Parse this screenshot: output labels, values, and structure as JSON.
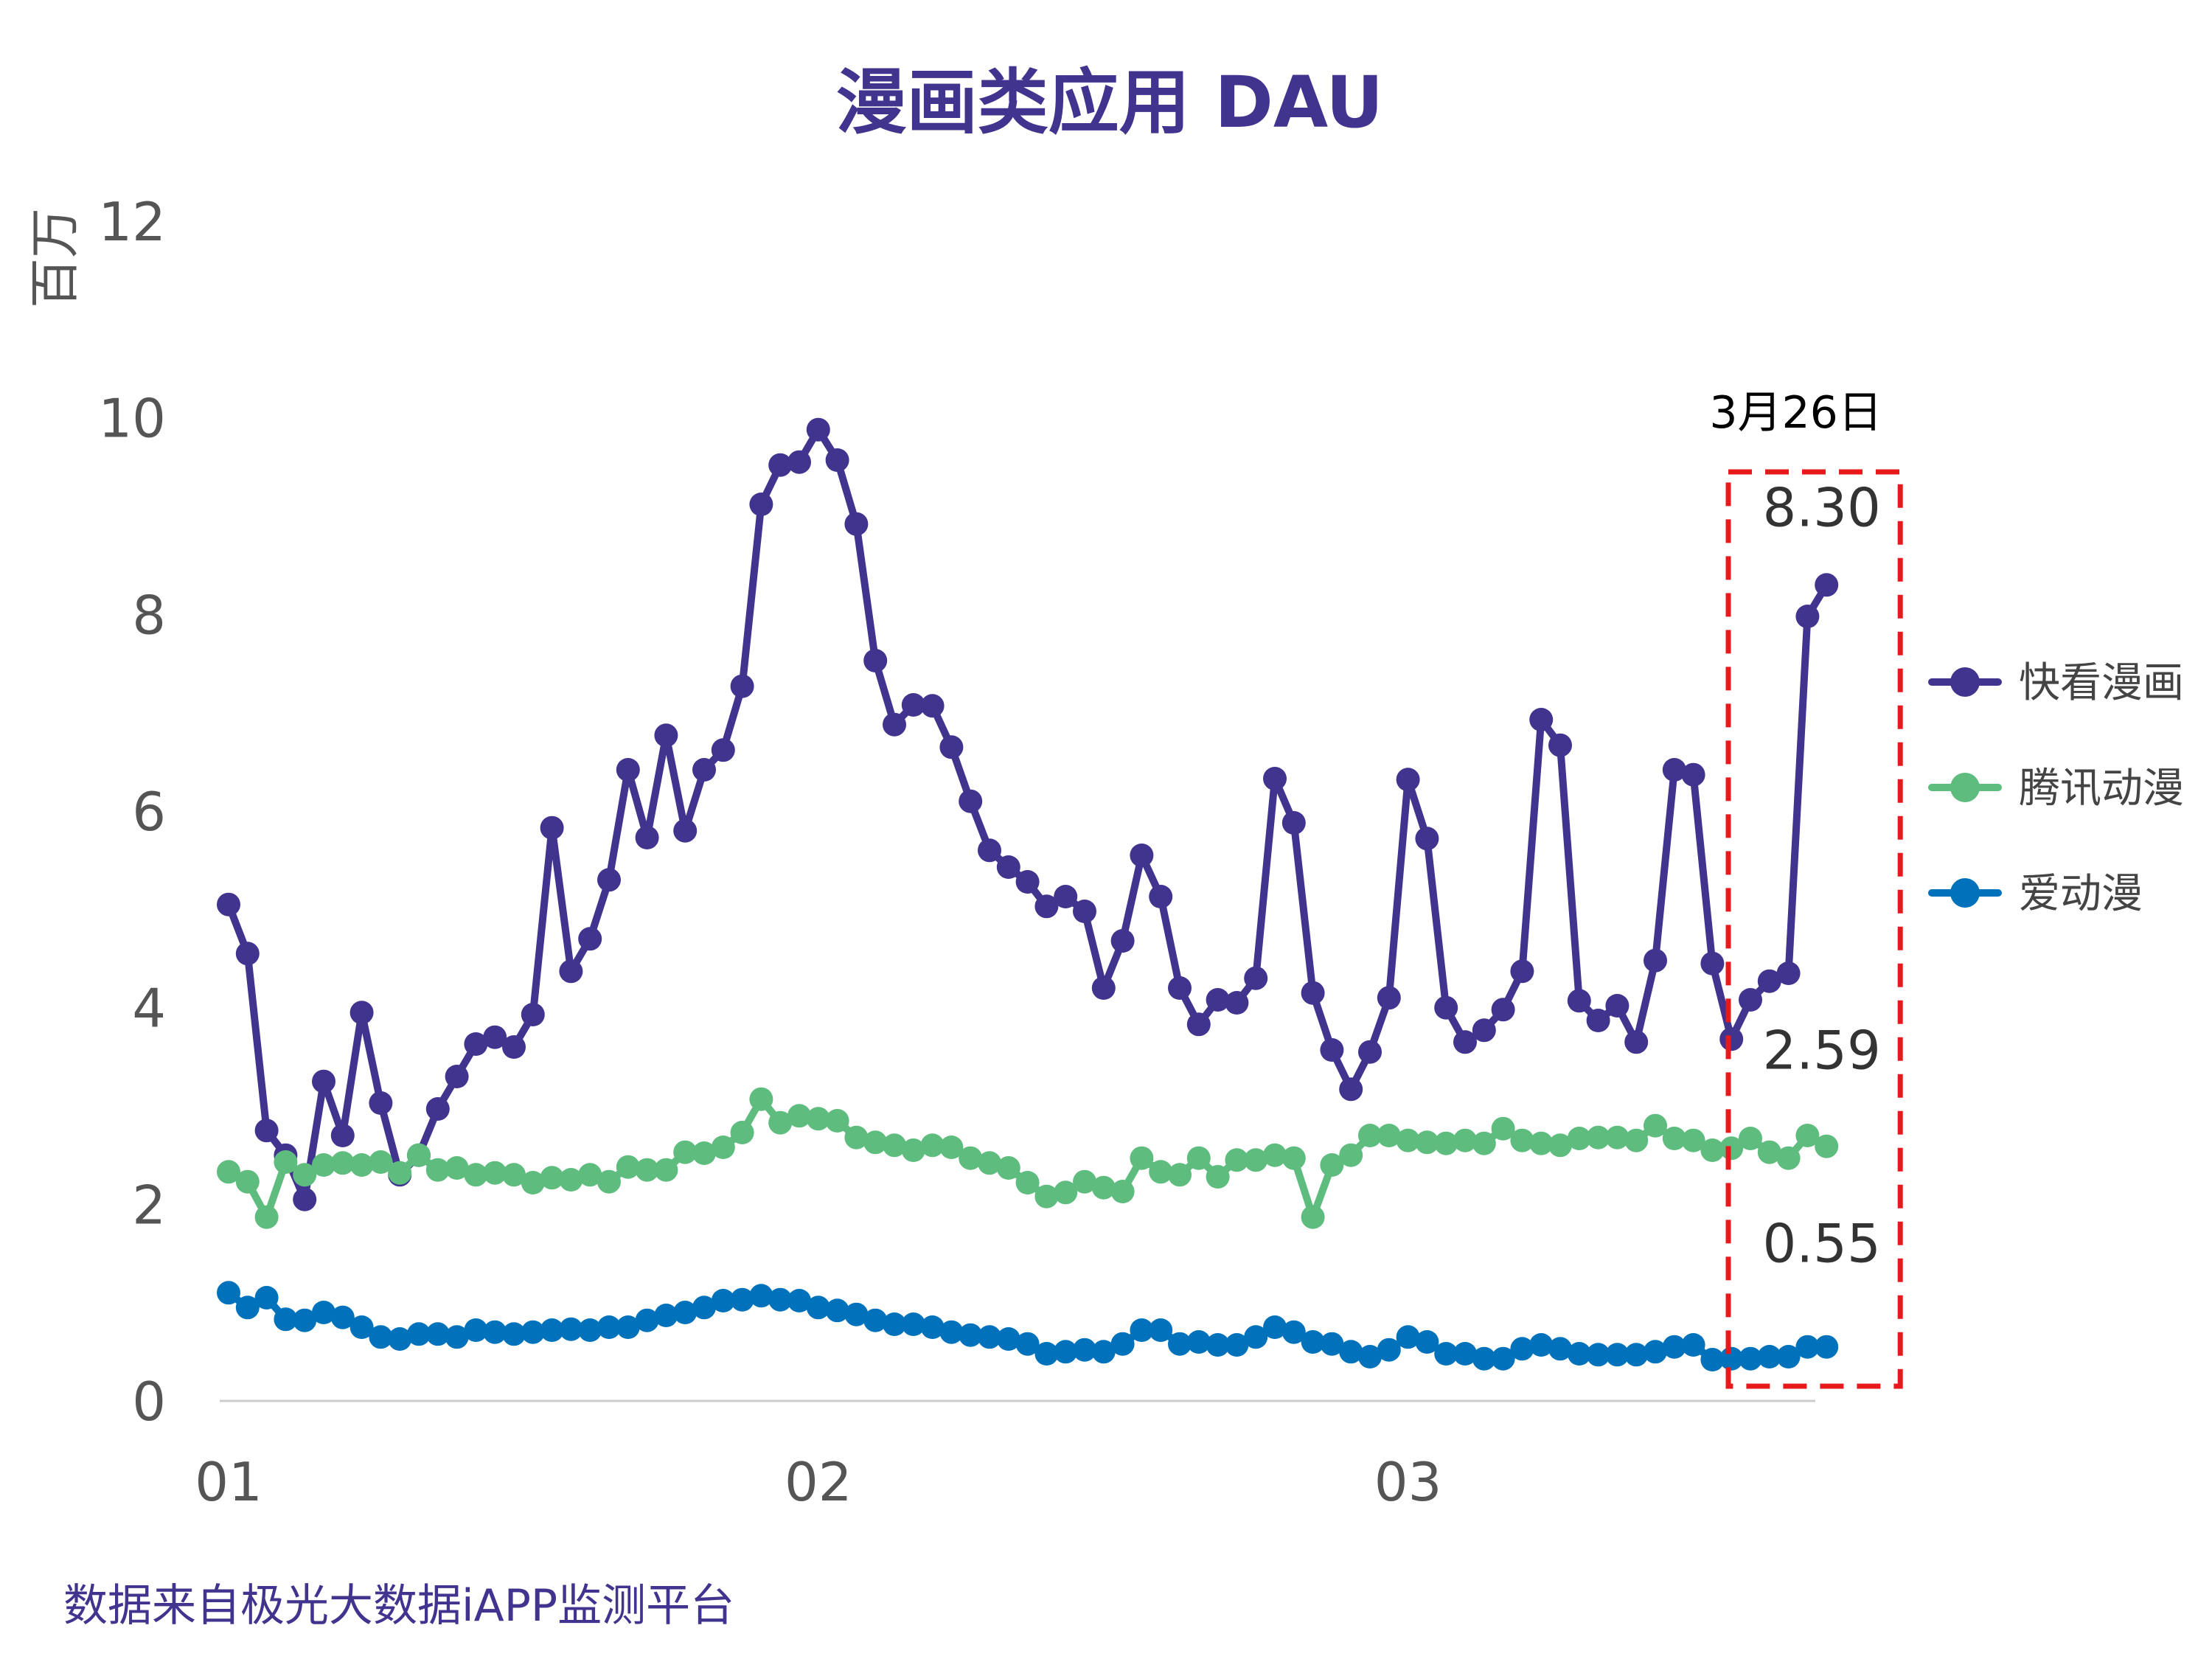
{
  "chart_data": {
    "type": "line",
    "title": "漫画类应用 DAU",
    "ylabel": "百万",
    "ylim": [
      0,
      12
    ],
    "yticks": [
      "0",
      "2",
      "4",
      "6",
      "8",
      "10",
      "12"
    ],
    "xticks": [
      {
        "index": 0,
        "label": "01"
      },
      {
        "index": 31,
        "label": "02"
      },
      {
        "index": 62,
        "label": "03"
      }
    ],
    "grid": false,
    "legend_position": "right",
    "series": [
      {
        "name": "快看漫画",
        "color": "#40348f",
        "values": [
          5.05,
          4.55,
          2.75,
          2.5,
          2.05,
          3.25,
          2.7,
          3.95,
          3.03,
          2.3,
          2.5,
          2.97,
          3.3,
          3.63,
          3.7,
          3.6,
          3.93,
          5.83,
          4.37,
          4.7,
          5.3,
          6.42,
          5.73,
          6.77,
          5.8,
          6.42,
          6.62,
          7.27,
          9.12,
          9.52,
          9.55,
          9.88,
          9.57,
          8.92,
          7.53,
          6.88,
          7.08,
          7.07,
          6.65,
          6.1,
          5.6,
          5.43,
          5.28,
          5.03,
          5.13,
          4.98,
          4.2,
          4.68,
          5.55,
          5.13,
          4.2,
          3.83,
          4.08,
          4.05,
          4.3,
          6.33,
          5.88,
          4.15,
          3.57,
          3.17,
          3.55,
          4.1,
          6.32,
          5.72,
          4.0,
          3.65,
          3.77,
          3.98,
          4.37,
          6.93,
          6.67,
          4.07,
          3.87,
          4.02,
          3.65,
          4.48,
          6.42,
          6.37,
          4.45,
          3.68,
          4.08,
          4.27,
          4.35,
          7.98,
          8.3
        ]
      },
      {
        "name": "腾讯动漫",
        "color": "#5ebd7e",
        "values": [
          2.33,
          2.23,
          1.87,
          2.43,
          2.3,
          2.4,
          2.42,
          2.4,
          2.43,
          2.32,
          2.5,
          2.35,
          2.37,
          2.3,
          2.32,
          2.3,
          2.22,
          2.27,
          2.25,
          2.3,
          2.23,
          2.38,
          2.35,
          2.35,
          2.53,
          2.52,
          2.58,
          2.73,
          3.07,
          2.83,
          2.9,
          2.87,
          2.85,
          2.68,
          2.63,
          2.6,
          2.55,
          2.6,
          2.58,
          2.47,
          2.42,
          2.37,
          2.22,
          2.08,
          2.12,
          2.23,
          2.17,
          2.13,
          2.47,
          2.33,
          2.3,
          2.47,
          2.28,
          2.45,
          2.45,
          2.5,
          2.47,
          1.87,
          2.4,
          2.5,
          2.7,
          2.7,
          2.65,
          2.63,
          2.62,
          2.65,
          2.62,
          2.77,
          2.65,
          2.62,
          2.6,
          2.67,
          2.68,
          2.68,
          2.65,
          2.8,
          2.67,
          2.65,
          2.55,
          2.57,
          2.67,
          2.53,
          2.47,
          2.7,
          2.59
        ]
      },
      {
        "name": "爱动漫",
        "color": "#0072bc",
        "values": [
          1.1,
          0.95,
          1.05,
          0.83,
          0.82,
          0.9,
          0.85,
          0.75,
          0.65,
          0.63,
          0.68,
          0.68,
          0.65,
          0.72,
          0.7,
          0.68,
          0.7,
          0.72,
          0.73,
          0.72,
          0.75,
          0.75,
          0.82,
          0.87,
          0.9,
          0.95,
          1.02,
          1.03,
          1.07,
          1.03,
          1.02,
          0.95,
          0.92,
          0.88,
          0.82,
          0.78,
          0.78,
          0.75,
          0.7,
          0.67,
          0.65,
          0.63,
          0.58,
          0.48,
          0.5,
          0.52,
          0.5,
          0.58,
          0.72,
          0.72,
          0.58,
          0.6,
          0.57,
          0.57,
          0.65,
          0.75,
          0.7,
          0.6,
          0.58,
          0.5,
          0.45,
          0.52,
          0.65,
          0.6,
          0.48,
          0.48,
          0.43,
          0.43,
          0.53,
          0.57,
          0.53,
          0.48,
          0.47,
          0.47,
          0.47,
          0.5,
          0.55,
          0.57,
          0.42,
          0.43,
          0.43,
          0.45,
          0.45,
          0.55,
          0.55
        ]
      }
    ],
    "highlight": {
      "date_label": "3月26日",
      "start_index": 80,
      "end_index": 84,
      "values": [
        "8.30",
        "2.59",
        "0.55"
      ]
    }
  },
  "footer": {
    "source": "数据来自极光大数据iAPP监测平台"
  }
}
